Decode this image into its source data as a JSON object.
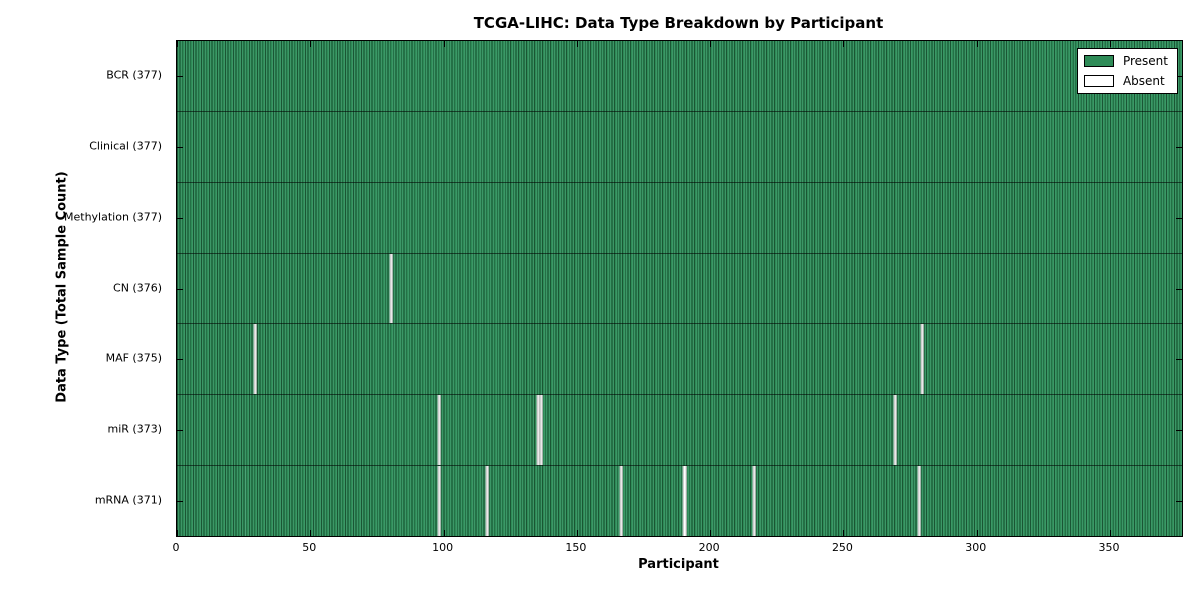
{
  "colors": {
    "present": "#2e8b57",
    "present_dark": "#1a5634",
    "present_light": "#4ba377",
    "absent": "#ffffff",
    "gap_edge": "#b8b8b8",
    "frame": "#000000"
  },
  "chart_data": {
    "type": "heatmap",
    "title": "TCGA-LIHC: Data Type Breakdown by Participant",
    "xlabel": "Participant",
    "ylabel": "Data Type (Total Sample Count)",
    "xlim": [
      0,
      377
    ],
    "x_ticks": [
      0,
      50,
      100,
      150,
      200,
      250,
      300,
      350
    ],
    "n_participants": 377,
    "grid": false,
    "legend_position": "upper right",
    "legend": {
      "present_label": "Present",
      "absent_label": "Absent"
    },
    "rows": [
      {
        "name": "BCR",
        "label": "BCR (377)",
        "total": 377,
        "absent_indices": []
      },
      {
        "name": "Clinical",
        "label": "Clinical (377)",
        "total": 377,
        "absent_indices": []
      },
      {
        "name": "Methylation",
        "label": "Methylation (377)",
        "total": 377,
        "absent_indices": []
      },
      {
        "name": "CN",
        "label": "CN (376)",
        "total": 376,
        "absent_indices": [
          80
        ]
      },
      {
        "name": "MAF",
        "label": "MAF (375)",
        "total": 375,
        "absent_indices": [
          29,
          279
        ]
      },
      {
        "name": "miR",
        "label": "miR (373)",
        "total": 373,
        "absent_indices": [
          98,
          135,
          136,
          269
        ]
      },
      {
        "name": "mRNA",
        "label": "mRNA (371)",
        "total": 371,
        "absent_indices": [
          98,
          116,
          166,
          190,
          216,
          278
        ]
      }
    ]
  }
}
